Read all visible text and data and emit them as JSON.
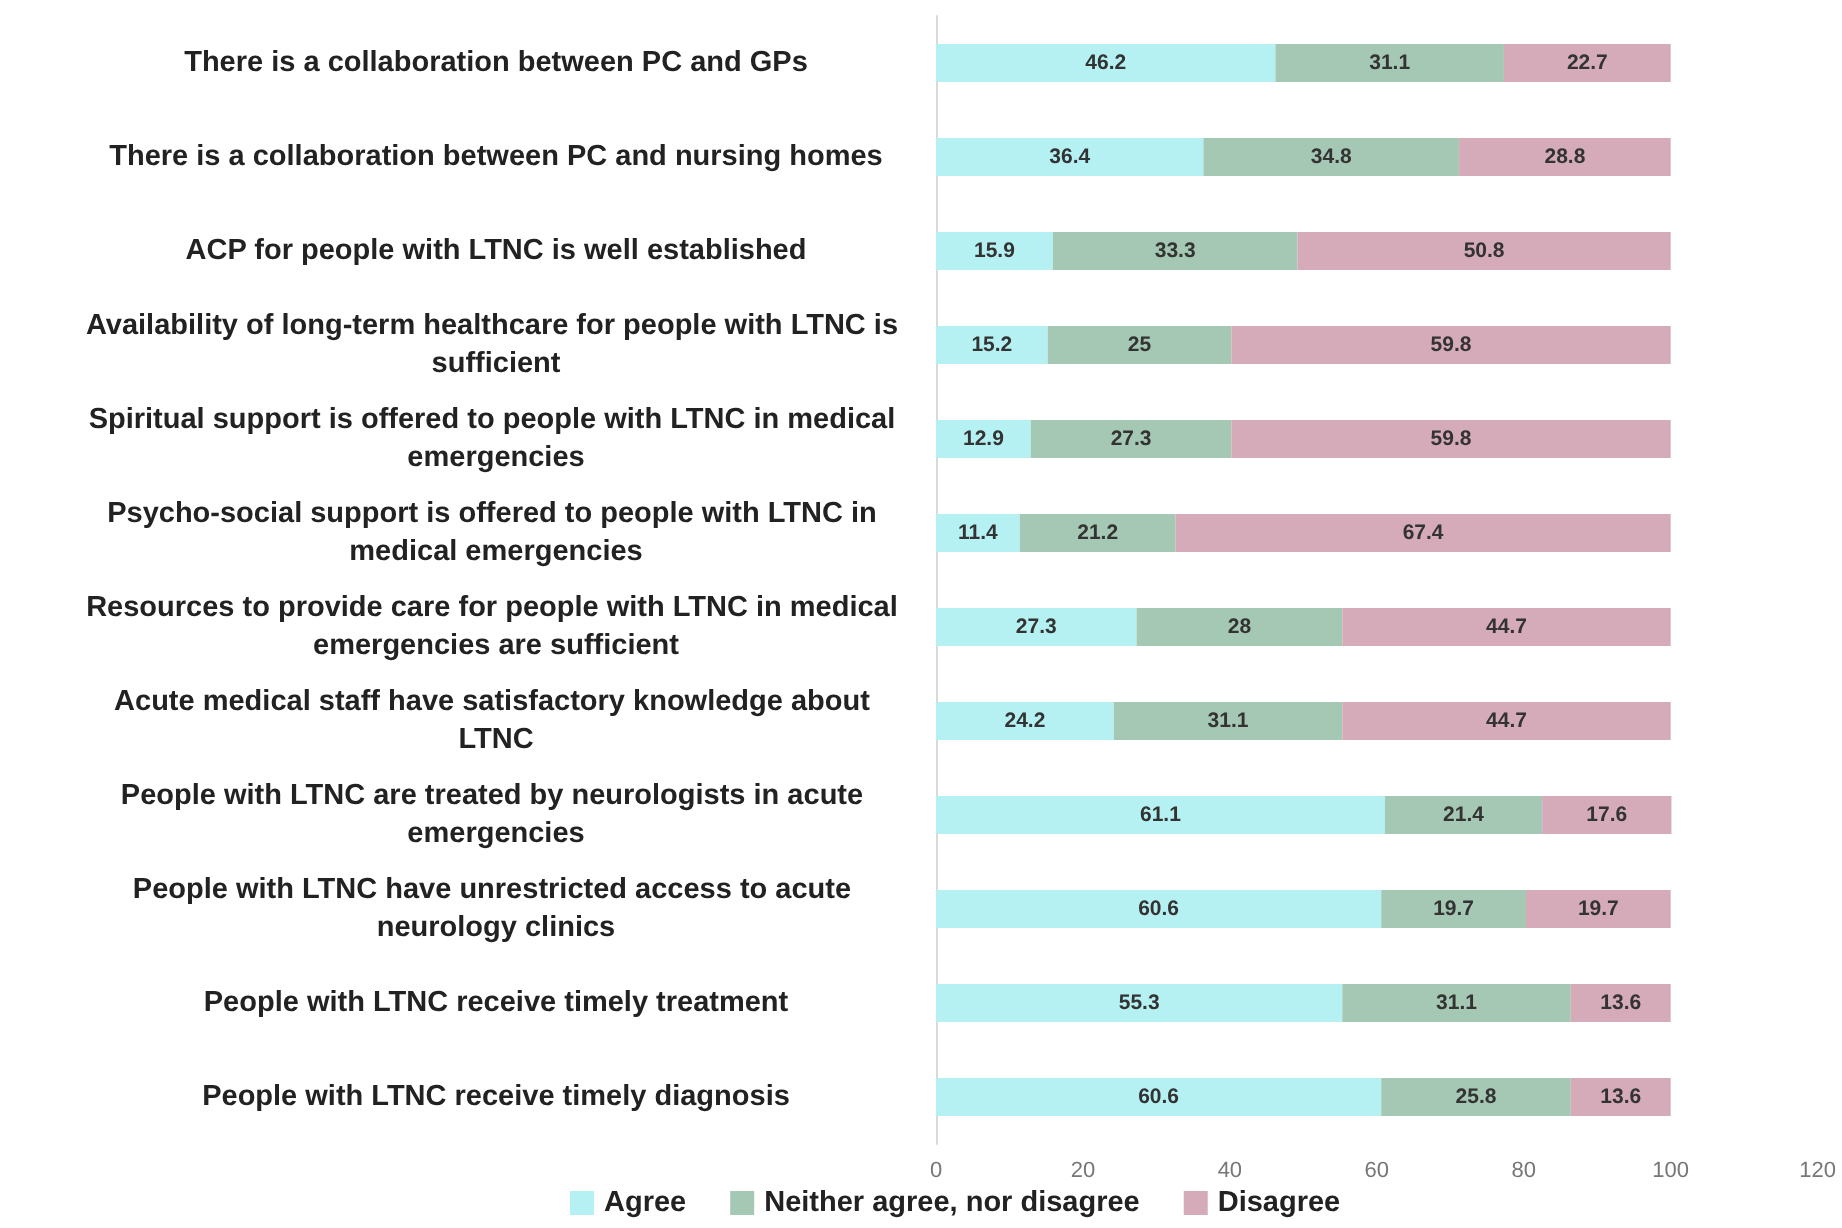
{
  "chart_data": {
    "type": "bar",
    "orientation": "horizontal",
    "stacked": true,
    "data_labels": true,
    "grid": false,
    "legend": "bottom",
    "categories": [
      "There is a collaboration between PC and GPs",
      "There is a collaboration between PC and nursing homes",
      "ACP for people with LTNC is well established",
      "Availability of long-term healthcare for people with LTNC is sufficient",
      "Spiritual support is offered to people with LTNC in medical emergencies",
      "Psycho-social support is offered to people with LTNC in medical emergencies",
      "Resources to provide care for people with LTNC in medical emergencies are sufficient",
      "Acute medical staff have satisfactory knowledge about LTNC",
      "People with LTNC are treated by neurologists in acute emergencies",
      "People with LTNC have unrestricted access to acute neurology clinics",
      "People with LTNC receive timely treatment",
      "People with LTNC receive timely diagnosis"
    ],
    "xlim": [
      0,
      120
    ],
    "xticks": [
      0,
      20,
      40,
      60,
      80,
      100,
      120
    ],
    "series": [
      {
        "name": "Agree",
        "color": "#b5f1f3",
        "values": [
          46.2,
          36.4,
          15.9,
          15.2,
          12.9,
          11.4,
          27.3,
          24.2,
          61.1,
          60.6,
          55.3,
          60.6
        ]
      },
      {
        "name": "Neither agree, nor disagree",
        "color": "#a4c8b4",
        "values": [
          31.1,
          34.8,
          33.3,
          25,
          27.3,
          21.2,
          28,
          31.1,
          21.4,
          19.7,
          31.1,
          25.8
        ]
      },
      {
        "name": "Disagree",
        "color": "#d5abba",
        "values": [
          22.7,
          28.8,
          50.8,
          59.8,
          59.8,
          67.4,
          44.7,
          44.7,
          17.6,
          19.7,
          13.6,
          13.6
        ]
      }
    ]
  }
}
